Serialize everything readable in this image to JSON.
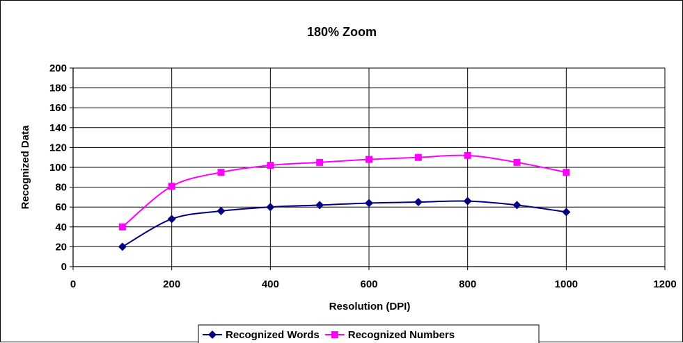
{
  "chart_data": {
    "type": "line",
    "title": "180% Zoom",
    "xlabel": "Resolution (DPI)",
    "ylabel": "Recognized Data",
    "xlim": [
      0,
      1200
    ],
    "ylim": [
      0,
      200
    ],
    "x_ticks": [
      0,
      200,
      400,
      600,
      800,
      1000,
      1200
    ],
    "y_ticks": [
      0,
      20,
      40,
      60,
      80,
      100,
      120,
      140,
      160,
      180,
      200
    ],
    "grid": true,
    "smooth": true,
    "legend_position": "bottom",
    "x": [
      100,
      200,
      300,
      400,
      500,
      600,
      700,
      800,
      900,
      1000
    ],
    "series": [
      {
        "name": "Recognized Words",
        "values": [
          20,
          48,
          56,
          60,
          62,
          64,
          65,
          66,
          62,
          55
        ],
        "color": "#000080",
        "marker": "diamond"
      },
      {
        "name": "Recognized Numbers",
        "values": [
          40,
          81,
          95,
          102,
          105,
          108,
          110,
          112,
          105,
          95
        ],
        "color": "#FF00FF",
        "marker": "square"
      }
    ]
  }
}
